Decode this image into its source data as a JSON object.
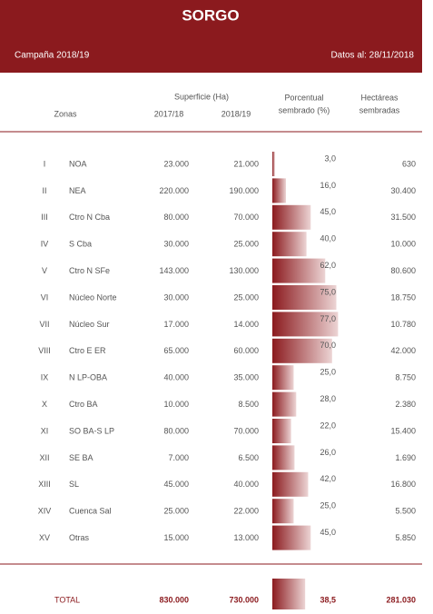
{
  "header": {
    "title": "SORGO",
    "campaign": "Campaña 2018/19",
    "date": "Datos al: 28/11/2018"
  },
  "table": {
    "columns": {
      "surface": "Superficie (Ha)",
      "zones": "Zonas",
      "year1": "2017/18",
      "year2": "2018/19",
      "percent": [
        "Porcentual",
        "sembrado (%)"
      ],
      "hectares": [
        "Hectáreas",
        "sembradas"
      ]
    },
    "rows": [
      [
        "I",
        "NOA",
        "23.000",
        "21.000",
        {
          "value": 3.0,
          "label": "3,0"
        },
        "630"
      ],
      [
        "II",
        "NEA",
        "220.000",
        "190.000",
        {
          "value": 16.0,
          "label": "16,0"
        },
        "30.400"
      ],
      [
        "III",
        "Ctro N Cba",
        "80.000",
        "70.000",
        {
          "value": 45.0,
          "label": "45,0"
        },
        "31.500"
      ],
      [
        "IV",
        "S Cba",
        "30.000",
        "25.000",
        {
          "value": 40.0,
          "label": "40,0"
        },
        "10.000"
      ],
      [
        "V",
        "Ctro N SFe",
        "143.000",
        "130.000",
        {
          "value": 62.0,
          "label": "62,0"
        },
        "80.600"
      ],
      [
        "VI",
        "Núcleo Norte",
        "30.000",
        "25.000",
        {
          "value": 75.0,
          "label": "75,0"
        },
        "18.750"
      ],
      [
        "VII",
        "Núcleo Sur",
        "17.000",
        "14.000",
        {
          "value": 77.0,
          "label": "77,0"
        },
        "10.780"
      ],
      [
        "VIII",
        "Ctro E ER",
        "65.000",
        "60.000",
        {
          "value": 70.0,
          "label": "70,0"
        },
        "42.000"
      ],
      [
        "IX",
        "N LP-OBA",
        "40.000",
        "35.000",
        {
          "value": 25.0,
          "label": "25,0"
        },
        "8.750"
      ],
      [
        "X",
        "Ctro BA",
        "10.000",
        "8.500",
        {
          "value": 28.0,
          "label": "28,0"
        },
        "2.380"
      ],
      [
        "XI",
        "SO BA-S LP",
        "80.000",
        "70.000",
        {
          "value": 22.0,
          "label": "22,0"
        },
        "15.400"
      ],
      [
        "XII",
        "SE BA",
        "7.000",
        "6.500",
        {
          "value": 26.0,
          "label": "26,0"
        },
        "1.690"
      ],
      [
        "XIII",
        "SL",
        "45.000",
        "40.000",
        {
          "value": 42.0,
          "label": "42,0"
        },
        "16.800"
      ],
      [
        "XIV",
        "Cuenca Sal",
        "25.000",
        "22.000",
        {
          "value": 25.0,
          "label": "25,0"
        },
        "5.500"
      ],
      [
        "XV",
        "Otras",
        "15.000",
        "13.000",
        {
          "value": 45.0,
          "label": "45,0"
        },
        "5.850"
      ]
    ],
    "total": [
      "TOTAL",
      "830.000",
      "730.000",
      {
        "value": 38.5,
        "label": "38,5"
      },
      "281.030"
    ]
  }
}
